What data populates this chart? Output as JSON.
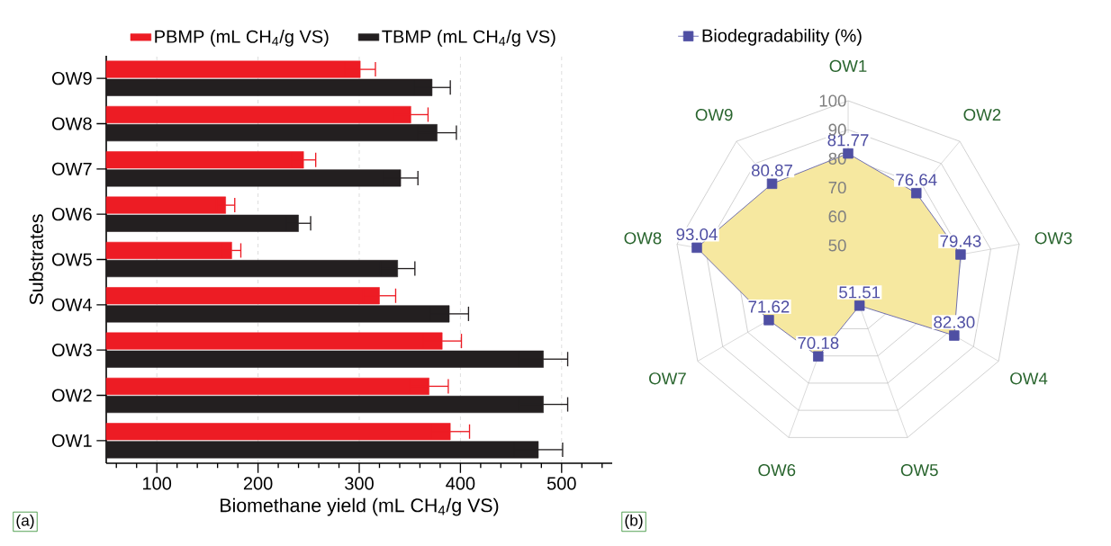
{
  "chart_data": [
    {
      "type": "bar",
      "orientation": "horizontal",
      "categories": [
        "OW9",
        "OW8",
        "OW7",
        "OW6",
        "OW5",
        "OW4",
        "OW3",
        "OW2",
        "OW1"
      ],
      "series": [
        {
          "name": "PBMP (mL CH$_{4}$/g VS)",
          "color": "#ed1c24",
          "values": [
            301,
            351,
            245,
            168,
            174,
            320,
            382,
            369,
            390
          ],
          "errors": [
            15,
            17,
            12,
            9,
            9,
            16,
            19,
            19,
            19
          ]
        },
        {
          "name": "TBMP (mL CH$_{4}$/g VS)",
          "color": "#231f20",
          "values": [
            372,
            377,
            341,
            240,
            338,
            389,
            482,
            482,
            477
          ],
          "errors": [
            18,
            19,
            17,
            12,
            17,
            19,
            24,
            24,
            24
          ]
        }
      ],
      "xlabel": "Biomethane yield (mL CH$_{4}$/g VS)",
      "ylabel": "Substrates",
      "xlim": [
        50,
        550
      ],
      "xticks": [
        {
          "value": 60,
          "label": null
        },
        {
          "value": 80,
          "label": null
        },
        100,
        {
          "value": 120,
          "label": null
        },
        {
          "value": 140,
          "label": null
        },
        {
          "value": 160,
          "label": null
        },
        {
          "value": 180,
          "label": null
        },
        200,
        {
          "value": 220,
          "label": null
        },
        {
          "value": 240,
          "label": null
        },
        {
          "value": 260,
          "label": null
        },
        {
          "value": 280,
          "label": null
        },
        300,
        {
          "value": 320,
          "label": null
        },
        {
          "value": 340,
          "label": null
        },
        {
          "value": 360,
          "label": null
        },
        {
          "value": 380,
          "label": null
        },
        400,
        {
          "value": 420,
          "label": null
        },
        {
          "value": 440,
          "label": null
        },
        {
          "value": 460,
          "label": null
        },
        {
          "value": 480,
          "label": null
        },
        500,
        {
          "value": 520,
          "label": null
        },
        {
          "value": 540,
          "label": null
        }
      ],
      "grid": "x",
      "legend": "top",
      "annotations": [
        "(a)"
      ]
    },
    {
      "type": "radar",
      "categories": [
        "OW1",
        "OW2",
        "OW3",
        "OW4",
        "OW5",
        "OW6",
        "OW7",
        "OW8",
        "OW9"
      ],
      "series": [
        {
          "name": "Biodegradability (%)",
          "color": "#4f4fa3",
          "values": [
            81.77,
            76.64,
            79.43,
            82.3,
            51.51,
            70.18,
            71.62,
            93.04,
            80.87
          ],
          "value_labels": [
            "81.77",
            "76.64",
            "79.43",
            "82.30",
            "51.51",
            "70.18",
            "71.62",
            "93.04",
            "80.87"
          ]
        }
      ],
      "ylim": [
        40,
        100
      ],
      "yticks": [
        50,
        60,
        70,
        80,
        90,
        100
      ],
      "grid": true,
      "marker": "square",
      "legend": "top",
      "annotations": [
        "(b)"
      ]
    }
  ]
}
